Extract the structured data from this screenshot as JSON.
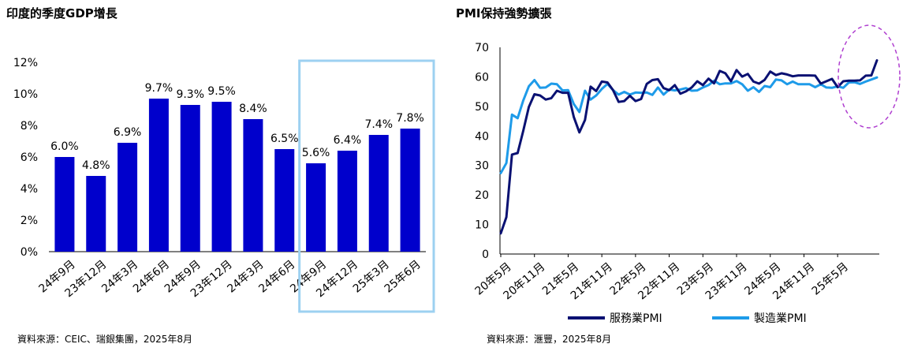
{
  "left_title": "印度的季度GDP增長",
  "right_title": "PMI保持強勢擴張",
  "left_source": "資料來源：CEIC、瑞銀集團，2025年8月",
  "right_source": "資料來源：滙豐，2025年8月",
  "chart_data": [
    {
      "type": "bar",
      "title": "印度的季度GDP增長",
      "categories": [
        "24年9月",
        "23年12月",
        "24年3月",
        "24年6月",
        "24年9月",
        "23年12月",
        "24年3月",
        "24年6月",
        "24年9月",
        "24年12月",
        "25年3月",
        "25年6月"
      ],
      "values": [
        6.0,
        4.8,
        6.9,
        9.7,
        9.3,
        9.5,
        8.4,
        6.5,
        5.6,
        6.4,
        7.4,
        7.8
      ],
      "data_labels": [
        "6.0%",
        "4.8%",
        "6.9%",
        "9.7%",
        "9.3%",
        "9.5%",
        "8.4%",
        "6.5%",
        "5.6%",
        "6.4%",
        "7.4%",
        "7.8%"
      ],
      "y_ticks": [
        "12%",
        "10%",
        "8%",
        "6%",
        "4%",
        "2%",
        "0%"
      ],
      "ylim": [
        0,
        12
      ],
      "bar_color": "#0000CC",
      "highlight_color": "#9DD1F1",
      "highlight_range": [
        8,
        11
      ],
      "grid": false
    },
    {
      "type": "line",
      "title": "PMI保持強勢擴張",
      "x_tick_labels": [
        "20年5月",
        "20年11月",
        "21年5月",
        "21年11月",
        "22年5月",
        "22年11月",
        "23年5月",
        "23年11月",
        "24年5月",
        "24年11月",
        "25年5月"
      ],
      "y_ticks": [
        "70",
        "60",
        "50",
        "40",
        "30",
        "20",
        "10",
        "0"
      ],
      "ylim": [
        0,
        70
      ],
      "grid": false,
      "legend_position": "bottom",
      "highlight_color": "#B040D0",
      "series": [
        {
          "name": "服務業PMI",
          "color": "#0A1172",
          "values": [
            7,
            12.5,
            33.7,
            34.2,
            41.7,
            49.8,
            54.1,
            53.7,
            52.3,
            52.8,
            55.3,
            54.6,
            54.6,
            46.4,
            41.2,
            45.4,
            56.7,
            55.2,
            58.4,
            58.1,
            55.5,
            51.5,
            51.8,
            53.6,
            51.8,
            52.5,
            57.6,
            58.9,
            59.2,
            56.2,
            55.5,
            57.2,
            54.3,
            55.1,
            56.4,
            58.5,
            57.2,
            59.4,
            57.8,
            62.0,
            61.2,
            58.5,
            62.3,
            60.1,
            61.0,
            58.4,
            57.7,
            59.0,
            61.8,
            60.6,
            61.2,
            60.8,
            60.2,
            60.5,
            60.5,
            60.5,
            60.4,
            57.7,
            58.5,
            59.3,
            56.5,
            58.5,
            58.7,
            58.7,
            58.8,
            60.4,
            60.5,
            65.6
          ]
        },
        {
          "name": "製造業PMI",
          "color": "#1E9BE9",
          "values": [
            27.4,
            30.8,
            47.2,
            46.0,
            52.0,
            56.8,
            58.9,
            56.3,
            56.4,
            57.7,
            57.5,
            55.4,
            55.5,
            50.8,
            48.1,
            55.3,
            52.3,
            53.7,
            55.9,
            57.6,
            55.5,
            54.0,
            54.9,
            54.0,
            54.7,
            54.6,
            54.7,
            53.9,
            56.4,
            54.0,
            55.7,
            55.4,
            55.7,
            56.2,
            55.3,
            55.4,
            56.4,
            57.2,
            58.7,
            57.5,
            57.8,
            57.8,
            58.6,
            57.5,
            55.3,
            56.5,
            54.9,
            56.9,
            56.5,
            59.1,
            58.8,
            57.5,
            58.4,
            57.5,
            57.5,
            57.5,
            56.5,
            57.5,
            56.4,
            56.3,
            56.8,
            56.3,
            58.1,
            58.2,
            57.6,
            58.4,
            59.1,
            59.8
          ]
        }
      ]
    }
  ]
}
